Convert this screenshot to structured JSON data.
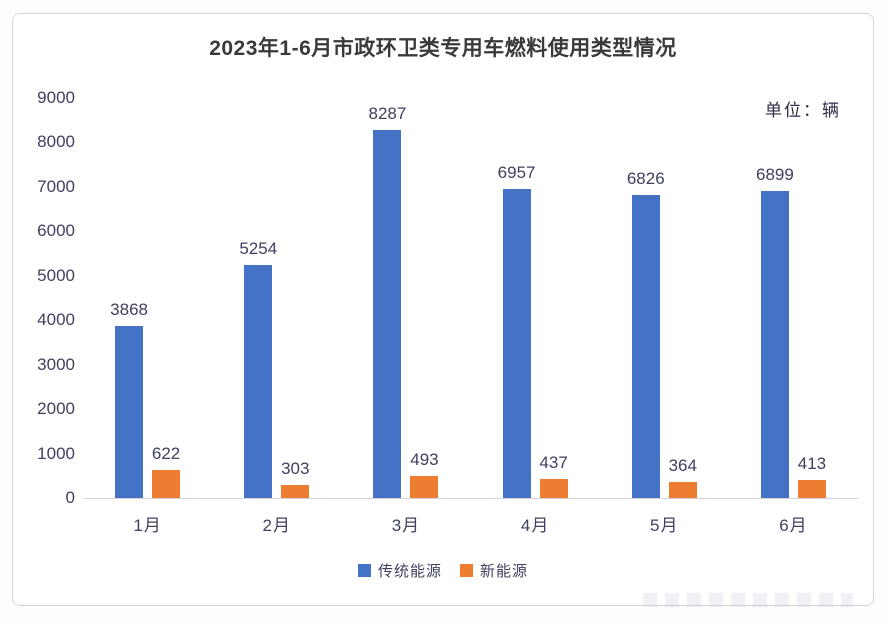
{
  "page": {
    "title": "2023年1-6月市政环卫类专用车燃料使用类型情况",
    "unit_label": "单位：辆"
  },
  "colors": {
    "traditional_blue": "#4472C4",
    "new_energy_orange": "#ED7D31",
    "label_text": "#3F4160",
    "title_text": "#3A3A3A",
    "axis_line": "#D6D0DA",
    "card_border": "#DAD3DE"
  },
  "legend": {
    "items": [
      {
        "label": "传统能源",
        "color": "#4472C4"
      },
      {
        "label": "新能源",
        "color": "#ED7D31"
      }
    ]
  },
  "chart_data": {
    "type": "bar",
    "title": "2023年1-6月市政环卫类专用车燃料使用类型情况",
    "unit": "单位：辆",
    "categories": [
      "1月",
      "2月",
      "3月",
      "4月",
      "5月",
      "6月"
    ],
    "series": [
      {
        "name": "传统能源",
        "color": "#4472C4",
        "values": [
          3868,
          5254,
          8287,
          6957,
          6826,
          6899
        ]
      },
      {
        "name": "新能源",
        "color": "#ED7D31",
        "values": [
          622,
          303,
          493,
          437,
          364,
          413
        ]
      }
    ],
    "xlabel": "",
    "ylabel": "",
    "ylim": [
      0,
      9000
    ],
    "yticks": [
      0,
      1000,
      2000,
      3000,
      4000,
      5000,
      6000,
      7000,
      8000,
      9000
    ],
    "grid": false,
    "data_labels": true,
    "legend_position": "bottom"
  }
}
